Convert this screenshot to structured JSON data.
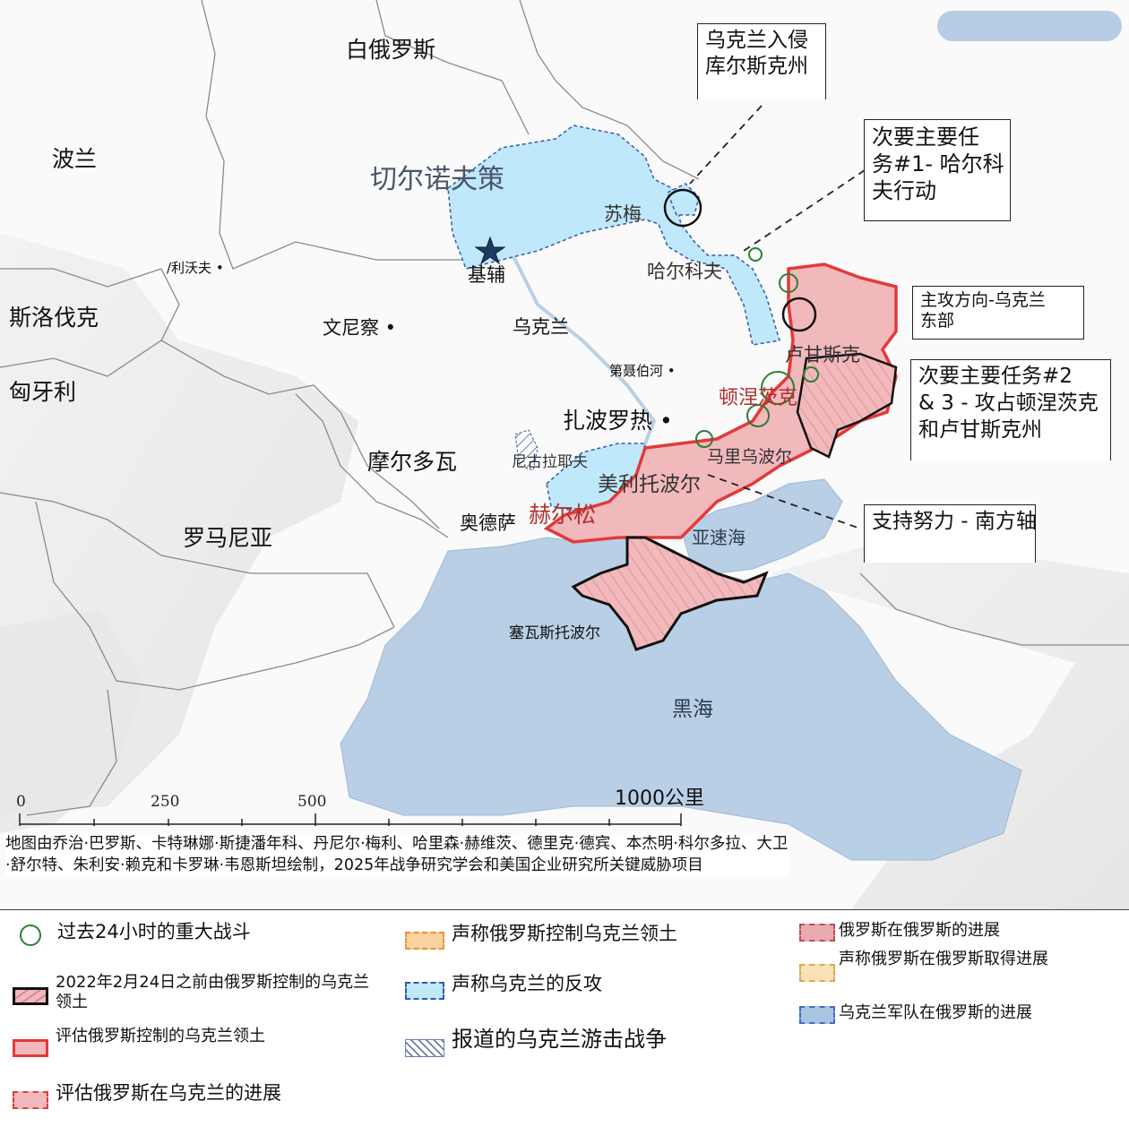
{
  "map": {
    "countries": {
      "belarus": "白俄罗斯",
      "poland": "波兰",
      "slovakia": "斯洛伐克",
      "hungary": "匈牙利",
      "moldova": "摩尔多瓦",
      "romania": "罗马尼亚",
      "ukraine": "乌克兰"
    },
    "cities": {
      "chernihiv": "切尔诺夫策",
      "kyiv": "基辅",
      "sumy": "苏梅",
      "kharkiv": "哈尔科夫",
      "lviv": "/利沃夫 •",
      "vinnytsia": "文尼察 •",
      "dnipro": "第聂伯河 •",
      "zaporizhzhia": "扎波罗热 •",
      "luhansk": "卢甘斯克",
      "donetsk": "顿涅茨克",
      "mariupol": "马里乌波尔",
      "mykolaiv": "尼古拉耶夫",
      "melitopol": "美利托波尔",
      "kherson": "赫尔松",
      "odesa": "奥德萨",
      "sevastopol": "塞瓦斯托波尔"
    },
    "seas": {
      "azov": "亚速海",
      "black": "黑海"
    },
    "callouts": {
      "kursk": "乌克兰入侵\n库尔斯克州",
      "kharkiv_op": "次要主要任\n务#1- 哈尔科\n夫行动",
      "east_ukraine": "主攻方向-乌克兰\n东部",
      "donbas": "次要主要任务#2\n& 3 - 攻占顿涅茨克\n和卢甘斯克州",
      "south": "支持努力 - 南方轴"
    },
    "scale": {
      "t0": "0",
      "t250": "250",
      "t500": "500",
      "t1000": "1000公里"
    },
    "colors": {
      "water": "#b9cfe5",
      "ukraine_counteroffensive": "#bfe8fb",
      "russian_control": "#f2b9bd",
      "border_red": "#e23a3a",
      "battle_circle": "#2e7d32"
    }
  },
  "credit": "地图由乔治·巴罗斯、卡特琳娜·斯捷潘年科、丹尼尔·梅利、哈里森·赫维茨、德里克·德宾、本杰明·科尔多拉、大卫·舒尔特、朱利安·赖克和卡罗琳·韦恩斯坦绘制，2025年战争研究学会和美国企业研究所关键威胁项目",
  "legend": {
    "battles": "过去24小时的重大战斗",
    "pre2022": "2022年2月24日之前由俄罗斯控制的乌克兰领土",
    "assessed_control": "评估俄罗斯控制的乌克兰领土",
    "assessed_advance": "评估俄罗斯在乌克兰的进展",
    "claimed_control": "声称俄罗斯控制乌克兰领土",
    "claimed_counter": "声称乌克兰的反攻",
    "partisan": "报道的乌克兰游击战争",
    "ru_advance_in_ru": "俄罗斯在俄罗斯的进展",
    "ru_claimed_in_ru": "声称俄罗斯在俄罗斯取得进展",
    "ua_in_ru": "乌克兰军队在俄罗斯的进展"
  }
}
